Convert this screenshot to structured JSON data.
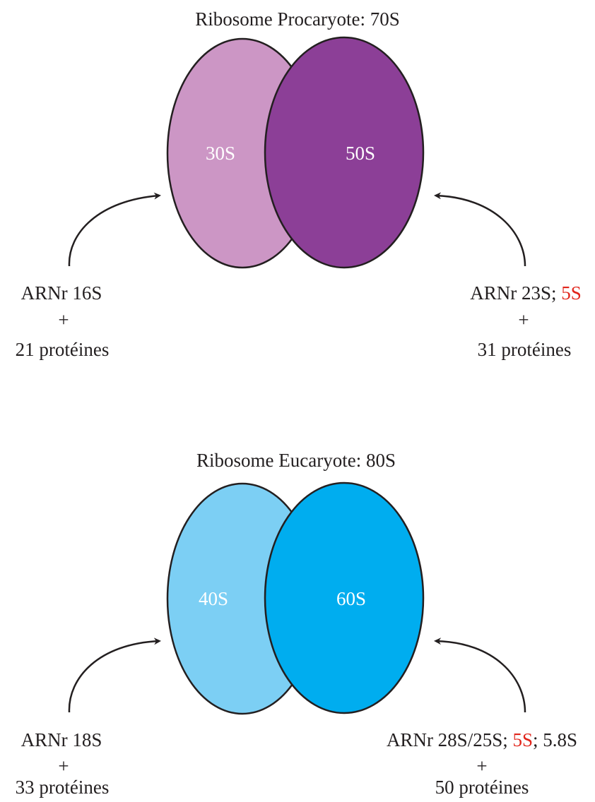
{
  "colors": {
    "text": "#231f20",
    "highlight": "#e1251b",
    "prokaryote_small": "#cc96c5",
    "prokaryote_large": "#8c3f97",
    "eukaryote_small": "#7ccff4",
    "eukaryote_large": "#00adef"
  },
  "prokaryote": {
    "title": "Ribosome Procaryote: 70S",
    "small_subunit": "30S",
    "large_subunit": "50S",
    "left": {
      "line1": "ARNr 16S",
      "plus": "+",
      "line3": "21 protéines"
    },
    "right": {
      "line1_prefix": "ARNr 23S; ",
      "line1_highlight": "5S",
      "line1_suffix": "",
      "plus": "+",
      "line3": "31 protéines"
    }
  },
  "eukaryote": {
    "title": "Ribosome Eucaryote: 80S",
    "small_subunit": "40S",
    "large_subunit": "60S",
    "left": {
      "line1": "ARNr 18S",
      "plus": "+",
      "line3": "33 protéines"
    },
    "right": {
      "line1_prefix": "ARNr 28S/25S; ",
      "line1_highlight": "5S",
      "line1_suffix": "; 5.8S",
      "plus": "+",
      "line3": "50 protéines"
    }
  }
}
